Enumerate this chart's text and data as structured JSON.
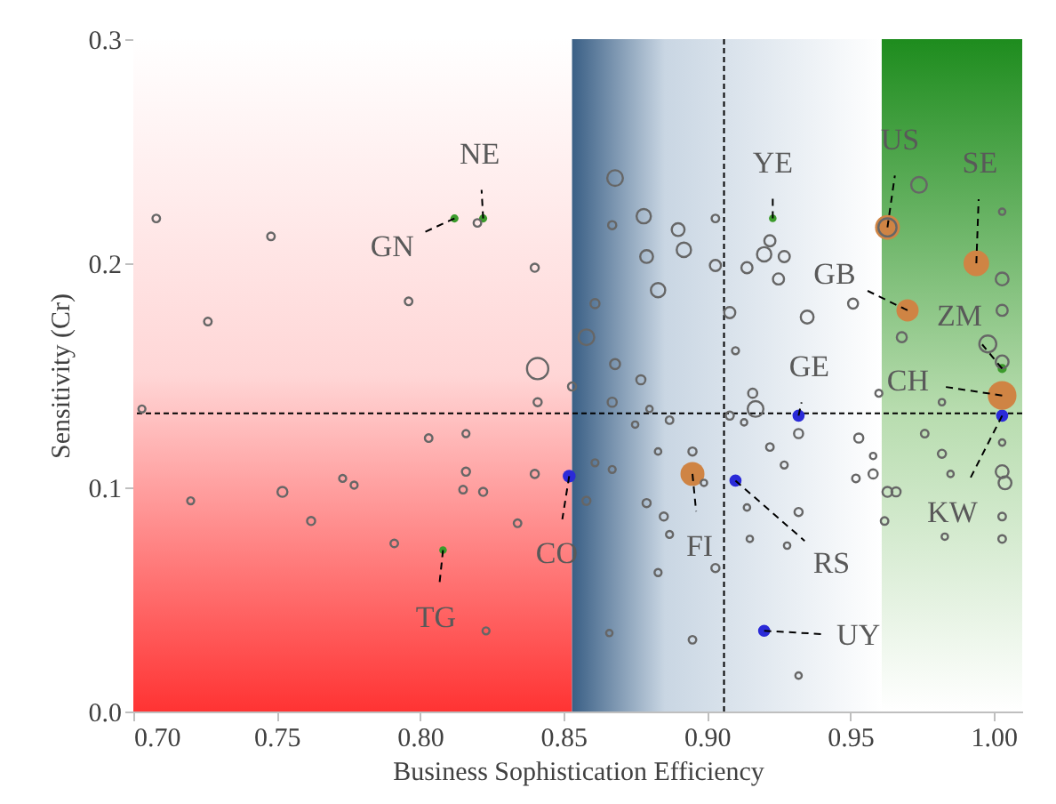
{
  "chart_data": {
    "type": "bubble",
    "xlabel": "Business Sophistication Efficiency",
    "ylabel": "Sensitivity (Cr)",
    "xlim": [
      0.7,
      1.01
    ],
    "ylim": [
      0,
      0.3
    ],
    "xticks": [
      {
        "value": 0.7,
        "label": "0.70"
      },
      {
        "value": 0.75,
        "label": "0.75"
      },
      {
        "value": 0.8,
        "label": "0.80"
      },
      {
        "value": 0.85,
        "label": "0.85"
      },
      {
        "value": 0.9,
        "label": "0.90"
      },
      {
        "value": 0.95,
        "label": "0.95"
      },
      {
        "value": 1.0,
        "label": "1.00"
      }
    ],
    "yticks": [
      {
        "value": 0,
        "label": "0.0"
      },
      0.1,
      0.2,
      0.3
    ],
    "grid": false,
    "bands": [
      {
        "axis": "x",
        "from": 0.7,
        "to": 0.853,
        "color": "#ff3333"
      },
      {
        "axis": "x",
        "from": 0.853,
        "to": 0.961,
        "color": "#3a5f85"
      },
      {
        "axis": "x",
        "from": 0.961,
        "to": 1.01,
        "color": "#1e8c1e"
      }
    ],
    "ref_lines": [
      {
        "axis": "x",
        "value": 0.906,
        "line_style": "dashed"
      },
      {
        "axis": "y",
        "value": 0.133,
        "line_style": "dashed"
      }
    ],
    "series": [
      {
        "color": "#666666",
        "x": [
          0.708,
          0.748,
          0.726,
          0.796,
          0.84,
          0.82,
          0.841,
          0.853,
          0.703,
          0.841,
          0.803,
          0.816,
          0.72,
          0.752,
          0.773,
          0.777,
          0.762,
          0.816,
          0.815,
          0.822,
          0.84,
          0.834,
          0.791,
          0.823,
          0.868,
          0.867,
          0.878,
          0.89,
          0.892,
          0.879,
          0.903,
          0.903,
          0.883,
          0.861,
          0.858,
          0.867,
          0.868,
          0.877,
          0.88,
          0.887,
          0.875,
          0.908,
          0.91,
          0.922,
          0.92,
          0.927,
          0.914,
          0.925,
          0.935,
          0.951,
          0.916,
          0.917,
          0.908,
          0.913,
          0.932,
          0.953,
          0.96,
          0.922,
          0.927,
          0.958,
          0.952,
          0.958,
          0.963,
          0.966,
          0.962,
          0.932,
          0.914,
          0.915,
          0.928,
          0.895,
          0.899,
          0.883,
          0.861,
          0.867,
          0.879,
          0.858,
          0.885,
          0.887,
          0.903,
          0.883,
          0.866,
          0.895,
          0.932,
          0.963,
          0.974,
          0.968,
          1.003,
          1.003,
          1.003,
          0.998,
          1.003,
          0.982,
          0.976,
          0.982,
          1.003,
          1.003,
          1.004,
          0.985,
          1.003,
          1.003,
          0.983
        ],
        "values": [
          0.22,
          0.212,
          0.174,
          0.183,
          0.198,
          0.218,
          0.153,
          0.145,
          0.135,
          0.138,
          0.122,
          0.124,
          0.094,
          0.098,
          0.104,
          0.101,
          0.085,
          0.107,
          0.099,
          0.098,
          0.106,
          0.084,
          0.075,
          0.036,
          0.238,
          0.217,
          0.221,
          0.215,
          0.206,
          0.203,
          0.22,
          0.199,
          0.188,
          0.182,
          0.167,
          0.138,
          0.155,
          0.148,
          0.135,
          0.13,
          0.128,
          0.178,
          0.161,
          0.21,
          0.204,
          0.203,
          0.198,
          0.193,
          0.176,
          0.182,
          0.142,
          0.135,
          0.132,
          0.129,
          0.124,
          0.122,
          0.142,
          0.118,
          0.11,
          0.114,
          0.104,
          0.106,
          0.098,
          0.098,
          0.085,
          0.089,
          0.091,
          0.077,
          0.074,
          0.116,
          0.102,
          0.116,
          0.111,
          0.108,
          0.093,
          0.094,
          0.087,
          0.079,
          0.064,
          0.062,
          0.035,
          0.032,
          0.016,
          0.216,
          0.235,
          0.167,
          0.223,
          0.193,
          0.179,
          0.164,
          0.156,
          0.138,
          0.124,
          0.115,
          0.12,
          0.107,
          0.102,
          0.106,
          0.087,
          0.077,
          0.078
        ],
        "sizes": [
          0.07,
          0.07,
          0.07,
          0.07,
          0.08,
          0.07,
          0.55,
          0.08,
          0.06,
          0.08,
          0.07,
          0.06,
          0.06,
          0.12,
          0.06,
          0.06,
          0.08,
          0.08,
          0.07,
          0.08,
          0.08,
          0.07,
          0.07,
          0.06,
          0.3,
          0.08,
          0.25,
          0.2,
          0.25,
          0.2,
          0.07,
          0.15,
          0.25,
          0.1,
          0.3,
          0.1,
          0.12,
          0.1,
          0.05,
          0.07,
          0.05,
          0.15,
          0.06,
          0.15,
          0.25,
          0.15,
          0.15,
          0.15,
          0.2,
          0.12,
          0.1,
          0.3,
          0.08,
          0.05,
          0.1,
          0.1,
          0.06,
          0.07,
          0.06,
          0.05,
          0.07,
          0.1,
          0.12,
          0.1,
          0.07,
          0.08,
          0.05,
          0.05,
          0.05,
          0.08,
          0.05,
          0.05,
          0.06,
          0.06,
          0.08,
          0.08,
          0.08,
          0.06,
          0.08,
          0.06,
          0.05,
          0.07,
          0.05,
          0.4,
          0.3,
          0.12,
          0.05,
          0.2,
          0.15,
          0.35,
          0.2,
          0.05,
          0.07,
          0.08,
          0.05,
          0.2,
          0.2,
          0.05,
          0.07,
          0.07,
          0.05
        ]
      },
      {
        "color": "#3c9b2c",
        "x": [
          0.812,
          0.822,
          0.923,
          1.003,
          0.808
        ],
        "values": [
          0.22,
          0.22,
          0.22,
          0.153,
          0.072
        ],
        "sizes": [
          0.08,
          0.08,
          0.07,
          0.1,
          0.07
        ]
      },
      {
        "color": "#2a2ad8",
        "x": [
          0.852,
          0.932,
          0.91,
          0.92,
          1.003
        ],
        "values": [
          0.105,
          0.132,
          0.103,
          0.036,
          0.132
        ],
        "sizes": [
          0.2,
          0.18,
          0.18,
          0.18,
          0.18
        ]
      },
      {
        "color": "#cf8444",
        "x": [
          0.895,
          0.963,
          0.97,
          0.994,
          1.003
        ],
        "values": [
          0.106,
          0.216,
          0.179,
          0.2,
          0.141
        ],
        "sizes": [
          0.7,
          0.75,
          0.6,
          0.8,
          1
        ]
      }
    ],
    "annotations": [
      {
        "text": "GN",
        "x": 0.812,
        "y": 0.22
      },
      {
        "text": "NE",
        "x": 0.822,
        "y": 0.22
      },
      {
        "text": "TG",
        "x": 0.808,
        "y": 0.072
      },
      {
        "text": "CO",
        "x": 0.852,
        "y": 0.105
      },
      {
        "text": "FI",
        "x": 0.895,
        "y": 0.106
      },
      {
        "text": "RS",
        "x": 0.91,
        "y": 0.103
      },
      {
        "text": "UY",
        "x": 0.92,
        "y": 0.036
      },
      {
        "text": "GE",
        "x": 0.932,
        "y": 0.132
      },
      {
        "text": "YE",
        "x": 0.923,
        "y": 0.22
      },
      {
        "text": "US",
        "x": 0.963,
        "y": 0.216
      },
      {
        "text": "GB",
        "x": 0.97,
        "y": 0.179
      },
      {
        "text": "SE",
        "x": 0.994,
        "y": 0.2
      },
      {
        "text": "ZM",
        "x": 1.003,
        "y": 0.153
      },
      {
        "text": "CH",
        "x": 1.003,
        "y": 0.141
      },
      {
        "text": "KW",
        "x": 1.003,
        "y": 0.132
      }
    ]
  }
}
